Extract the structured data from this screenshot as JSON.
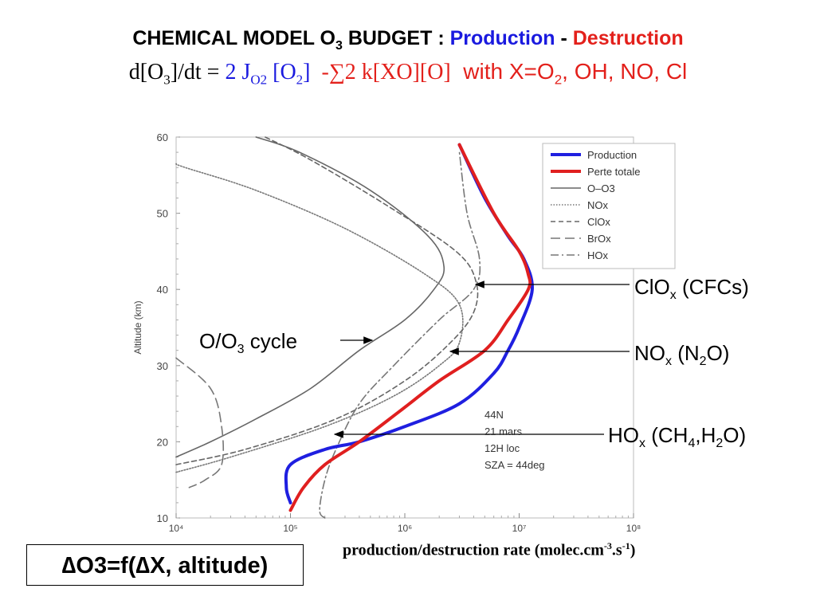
{
  "header": {
    "title_part1": "CHEMICAL MODEL O",
    "title_sub": "3",
    "title_part2": " BUDGET : ",
    "production": "Production",
    "dash": " - ",
    "destruction": "Destruction",
    "eq_d": "d[O",
    "eq_d_sub": "3",
    "eq_dt": "]/dt = ",
    "eq_prod": "2 J",
    "eq_prod_sub": "O2",
    "eq_prod2": " [O",
    "eq_prod2_sub": "2",
    "eq_prod3": "]",
    "eq_loss": "  -∑2 k[XO][O]",
    "eq_with": "  with X=O",
    "eq_with_sub": "2",
    "eq_with2": ", OH, NO, Cl"
  },
  "annotations": {
    "clox": "ClO",
    "clox_sub": "x",
    "clox_src": " (CFCs)",
    "nox": "NO",
    "nox_sub": "x",
    "nox_src1": " (N",
    "nox_src_sub": "2",
    "nox_src2": "O)",
    "hox": "HO",
    "hox_sub": "x",
    "hox_src1": " (CH",
    "hox_src_sub1": "4",
    "hox_src2": ",H",
    "hox_src_sub2": "2",
    "hox_src3": "O)",
    "oo3_1": "O/O",
    "oo3_sub": "3",
    "oo3_2": " cycle"
  },
  "box_formula": "∆O3=f(∆X, altitude)",
  "x_axis_label": {
    "main": "production/destruction rate (molec.cm",
    "sup1": "-3",
    "mid": ".s",
    "sup2": "-1",
    "end": ")"
  },
  "info_box": {
    "line1": "44N",
    "line2": "21 mars",
    "line3": "12H loc",
    "line4": "SZA = 44deg"
  },
  "colors": {
    "production": "#1f1fe0",
    "destruction": "#e01f1f",
    "gray": "#666666",
    "title_blue": "#1a1adf",
    "title_red": "#e3201b"
  },
  "chart_data": {
    "type": "line",
    "xscale": "log",
    "xlim": [
      10000,
      100000000
    ],
    "ylim": [
      10,
      60
    ],
    "ylabel": "Altitude (km)",
    "xticks": [
      "10⁴",
      "10⁵",
      "10⁶",
      "10⁷",
      "10⁸"
    ],
    "yticks": [
      "10",
      "20",
      "30",
      "40",
      "50",
      "60"
    ],
    "legend_position": "top-right",
    "series": [
      {
        "name": "Production",
        "color": "#1f1fe0",
        "style": "solid-thick",
        "points": [
          [
            100000,
            12
          ],
          [
            92000,
            14
          ],
          [
            100000,
            17
          ],
          [
            200000,
            19
          ],
          [
            400000,
            20
          ],
          [
            1000000,
            22
          ],
          [
            3000000,
            25
          ],
          [
            6000000,
            29
          ],
          [
            8000000,
            32
          ],
          [
            10000000,
            35
          ],
          [
            13000000,
            40
          ],
          [
            11000000,
            44
          ],
          [
            8000000,
            47
          ],
          [
            5000000,
            52
          ],
          [
            3000000,
            59
          ]
        ]
      },
      {
        "name": "Perte totale",
        "color": "#e01f1f",
        "style": "solid-thick",
        "points": [
          [
            100000,
            11
          ],
          [
            130000,
            14
          ],
          [
            200000,
            17
          ],
          [
            400000,
            20
          ],
          [
            900000,
            24
          ],
          [
            2000000,
            28
          ],
          [
            5000000,
            32
          ],
          [
            8000000,
            36
          ],
          [
            12000000,
            40
          ],
          [
            12000000,
            42
          ],
          [
            10000000,
            45
          ],
          [
            6000000,
            50
          ],
          [
            3000000,
            59
          ]
        ]
      },
      {
        "name": "O–O3",
        "color": "#666666",
        "style": "solid",
        "points": [
          [
            10000,
            18
          ],
          [
            20000,
            20
          ],
          [
            50000,
            23
          ],
          [
            150000,
            27
          ],
          [
            400000,
            32
          ],
          [
            1000000,
            36
          ],
          [
            1800000,
            40
          ],
          [
            2200000,
            43
          ],
          [
            1600000,
            47
          ],
          [
            500000,
            53
          ],
          [
            120000,
            58
          ],
          [
            50000,
            60
          ]
        ]
      },
      {
        "name": "NOx",
        "color": "#777777",
        "style": "dotted",
        "points": [
          [
            10000,
            16
          ],
          [
            30000,
            18
          ],
          [
            200000,
            22
          ],
          [
            800000,
            26
          ],
          [
            2000000,
            30
          ],
          [
            3000000,
            33
          ],
          [
            3000000,
            38
          ],
          [
            1500000,
            42
          ],
          [
            300000,
            48
          ],
          [
            50000,
            53
          ],
          [
            12000,
            56
          ],
          [
            10000,
            56.5
          ]
        ]
      },
      {
        "name": "ClOx",
        "color": "#666666",
        "style": "dashed",
        "points": [
          [
            10000,
            17
          ],
          [
            40000,
            19
          ],
          [
            250000,
            23
          ],
          [
            1000000,
            28
          ],
          [
            2500000,
            33
          ],
          [
            4000000,
            37
          ],
          [
            4200000,
            41
          ],
          [
            2800000,
            45
          ],
          [
            700000,
            51
          ],
          [
            150000,
            57
          ],
          [
            60000,
            60
          ]
        ]
      },
      {
        "name": "BrOx",
        "color": "#777777",
        "style": "long-dash",
        "points": [
          [
            10000,
            31
          ],
          [
            20000,
            27
          ],
          [
            25000,
            22
          ],
          [
            25000,
            17
          ],
          [
            18000,
            15
          ],
          [
            13000,
            14
          ]
        ]
      },
      {
        "name": "HOx",
        "color": "#777777",
        "style": "dash-dot",
        "points": [
          [
            200000,
            10
          ],
          [
            180000,
            11
          ],
          [
            200000,
            15
          ],
          [
            250000,
            19
          ],
          [
            400000,
            25
          ],
          [
            800000,
            30
          ],
          [
            2000000,
            36
          ],
          [
            4000000,
            40
          ],
          [
            4500000,
            44
          ],
          [
            3500000,
            50
          ],
          [
            3000000,
            58
          ]
        ]
      }
    ]
  }
}
